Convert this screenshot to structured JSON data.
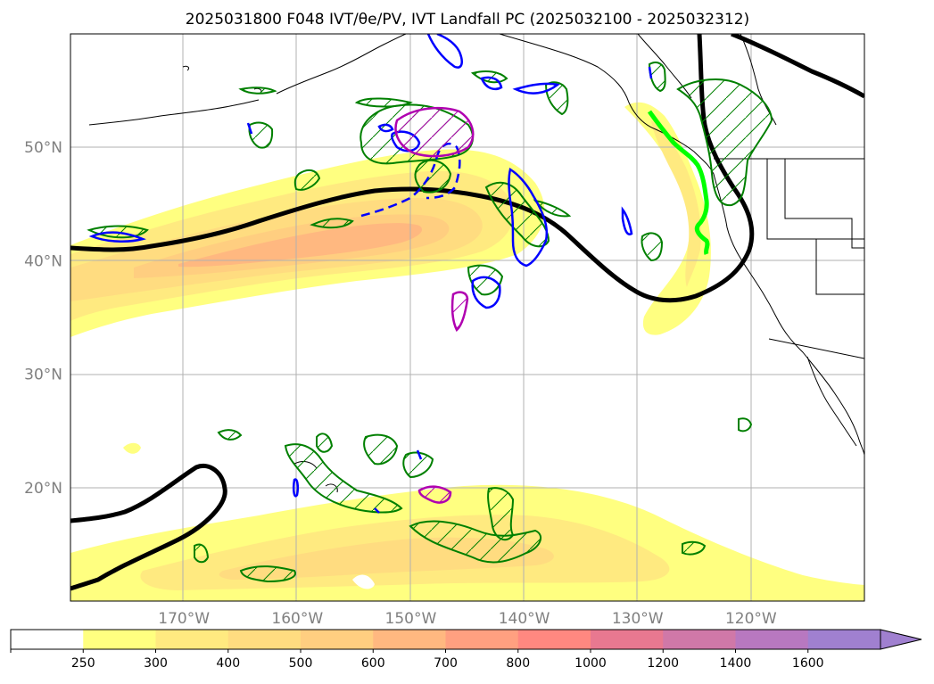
{
  "title": "2025031800 F048 IVT/θe/PV, IVT Landfall PC (2025032100 - 2025032312)",
  "map": {
    "lon_range": [
      -180,
      -110
    ],
    "lat_range": [
      10,
      60
    ],
    "lon_ticks": [
      {
        "lon": -170,
        "label": "170°W"
      },
      {
        "lon": -160,
        "label": "160°W"
      },
      {
        "lon": -150,
        "label": "150°W"
      },
      {
        "lon": -140,
        "label": "140°W"
      },
      {
        "lon": -130,
        "label": "130°W"
      },
      {
        "lon": -120,
        "label": "120°W"
      }
    ],
    "lat_ticks": [
      {
        "lat": 50,
        "label": "50°N"
      },
      {
        "lat": 40,
        "label": "40°N"
      },
      {
        "lat": 30,
        "label": "30°N"
      },
      {
        "lat": 20,
        "label": "20°N"
      }
    ],
    "grid": true
  },
  "colorbar": {
    "levels": [
      "250",
      "300",
      "400",
      "500",
      "600",
      "700",
      "800",
      "1000",
      "1200",
      "1400",
      "1600"
    ],
    "colors": [
      "#ffffff",
      "#ffff80",
      "#ffea80",
      "#ffdc80",
      "#ffce80",
      "#ffb880",
      "#ffa080",
      "#ff8880",
      "#e87890",
      "#d078a8",
      "#b878c0",
      "#a080d0"
    ],
    "extend": "max"
  },
  "colors": {
    "ivt_contour": "#000000",
    "theta_e": "#008000",
    "pv_positive": "#0000ff",
    "pv_secondary": "#b000b0",
    "landfall": "#00ff00",
    "coast": "#000000"
  }
}
